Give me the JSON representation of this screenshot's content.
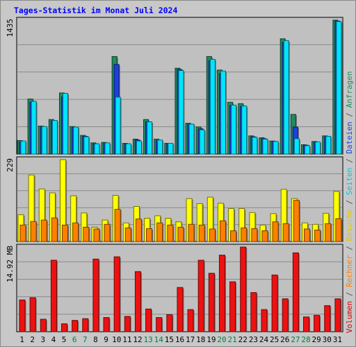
{
  "chart_data": {
    "type": "bar",
    "title": "Tages-Statistik im Monat Juli 2024",
    "x": [
      "1",
      "2",
      "3",
      "4",
      "5",
      "6",
      "7",
      "8",
      "9",
      "10",
      "11",
      "12",
      "13",
      "14",
      "15",
      "16",
      "17",
      "18",
      "19",
      "20",
      "21",
      "22",
      "23",
      "24",
      "25",
      "26",
      "27",
      "28",
      "29",
      "30",
      "31"
    ],
    "weekend_days": [
      "6",
      "7",
      "13",
      "14",
      "20",
      "21",
      "27",
      "28"
    ],
    "panels": [
      {
        "name": "requests",
        "ymax_label": "1435",
        "ymax": 1435,
        "series": [
          {
            "name": "Anfragen",
            "color": "#218a5e",
            "values": [
              145,
              590,
              300,
              370,
              655,
              295,
              200,
              120,
              125,
              1045,
              115,
              160,
              370,
              160,
              115,
              920,
              330,
              290,
              1045,
              900,
              555,
              540,
              195,
              175,
              140,
              1235,
              425,
              100,
              135,
              195,
              1435
            ]
          },
          {
            "name": "Dateien",
            "color": "#1e3fde",
            "values": [
              130,
              555,
              290,
              355,
              610,
              285,
              190,
              110,
              115,
              960,
              110,
              150,
              345,
              145,
              110,
              905,
              320,
              270,
              1000,
              860,
              520,
              510,
              185,
              165,
              135,
              1195,
              290,
              95,
              125,
              185,
              1425
            ]
          },
          {
            "name": "Seiten",
            "color": "#00e5ff",
            "values": [
              140,
              565,
              295,
              360,
              650,
              290,
              185,
              110,
              120,
              610,
              110,
              140,
              345,
              150,
              115,
              895,
              320,
              260,
              1015,
              890,
              525,
              515,
              180,
              160,
              135,
              1215,
              165,
              90,
              130,
              190,
              1420
            ]
          }
        ]
      },
      {
        "name": "visits",
        "ymax_label": "229",
        "ymax": 229,
        "series": [
          {
            "name": "Besuche",
            "color": "#ffff00",
            "values": [
              75,
              186,
              147,
              136,
              229,
              128,
              80,
              40,
              60,
              129,
              52,
              98,
              65,
              72,
              65,
              55,
              120,
              106,
              124,
              107,
              92,
              92,
              81,
              46,
              78,
              146,
              120,
              52,
              48,
              79,
              140
            ]
          },
          {
            "name": "Seiten",
            "color": "#ff8000",
            "values": [
              46,
              56,
              60,
              66,
              46,
              52,
              40,
              35,
              48,
              90,
              38,
              63,
              36,
              52,
              46,
              40,
              48,
              46,
              35,
              58,
              30,
              38,
              36,
              30,
              55,
              50,
              115,
              35,
              32,
              50,
              64
            ]
          }
        ]
      },
      {
        "name": "volume",
        "ymax_label": "14.92 MB",
        "ymax": 14.92,
        "series": [
          {
            "name": "Volumen",
            "color": "#ee1111",
            "values": [
              5.6,
              6.0,
              2.2,
              12.6,
              1.4,
              2.0,
              2.3,
              12.8,
              2.5,
              13.2,
              2.7,
              10.6,
              4.0,
              2.5,
              3.0,
              7.8,
              3.9,
              12.6,
              10.3,
              13.5,
              8.8,
              14.92,
              6.9,
              3.9,
              10.0,
              5.8,
              13.9,
              2.6,
              2.9,
              4.6,
              5.8
            ]
          }
        ]
      }
    ],
    "right_legend": [
      {
        "text": "Volumen",
        "color": "#dd0000"
      },
      {
        "text": " / ",
        "color": "#555555"
      },
      {
        "text": "Rechner",
        "color": "#ff8000"
      },
      {
        "text": " / ",
        "color": "#555555"
      },
      {
        "text": "Besuche",
        "color": "#e0c800"
      },
      {
        "text": " / ",
        "color": "#555555"
      },
      {
        "text": "Seiten",
        "color": "#00c8e0"
      },
      {
        "text": " / ",
        "color": "#555555"
      },
      {
        "text": "Dateien",
        "color": "#1e3fde"
      },
      {
        "text": " / ",
        "color": "#555555"
      },
      {
        "text": "Anfragen",
        "color": "#218a5e"
      }
    ],
    "xlabel": "",
    "grid": true,
    "colors": {
      "background": "#c8c8c8",
      "weekday_label": "#000000",
      "weekend_label": "#008040"
    }
  }
}
